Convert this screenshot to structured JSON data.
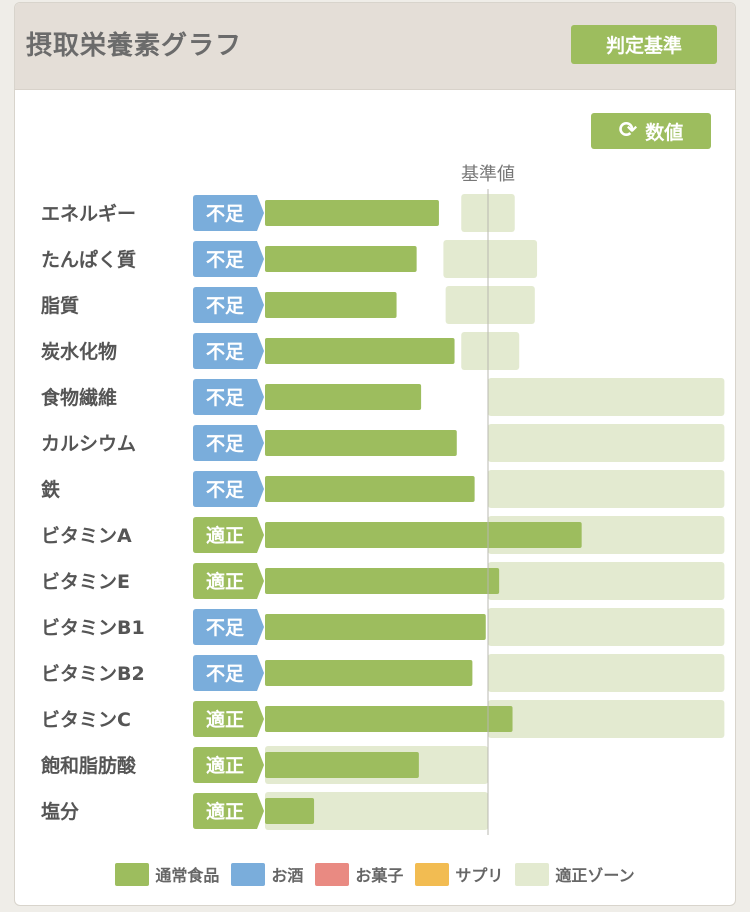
{
  "header": {
    "title": "摂取栄養素グラフ",
    "criteria_button": "判定基準"
  },
  "toolbar": {
    "value_button": "数値",
    "value_icon": "refresh-icon"
  },
  "colors": {
    "normal_food": "#9dbd5e",
    "alcohol": "#7aaddb",
    "snack": "#e98a82",
    "supplement": "#f2bc52",
    "zone": "#e3ead0",
    "status_deficient": "#7aaddb",
    "status_adequate": "#9dbd5e"
  },
  "chart_data": {
    "type": "bar",
    "orientation": "horizontal",
    "reference_label": "基準値",
    "reference_value": 100,
    "xlim": [
      0,
      206
    ],
    "categories": [
      "エネルギー",
      "たんぱく質",
      "脂質",
      "炭水化物",
      "食物繊維",
      "カルシウム",
      "鉄",
      "ビタミンA",
      "ビタミンE",
      "ビタミンB1",
      "ビタミンB2",
      "ビタミンC",
      "飽和脂肪酸",
      "塩分"
    ],
    "status": [
      "不足",
      "不足",
      "不足",
      "不足",
      "不足",
      "不足",
      "不足",
      "適正",
      "適正",
      "不足",
      "不足",
      "適正",
      "適正",
      "適正"
    ],
    "series": [
      {
        "name": "通常食品",
        "values": [
          78,
          68,
          59,
          85,
          70,
          86,
          94,
          142,
          105,
          99,
          93,
          111,
          69,
          22
        ]
      }
    ],
    "adequate_range": [
      [
        88,
        112
      ],
      [
        80,
        122
      ],
      [
        81,
        121
      ],
      [
        88,
        114
      ],
      [
        100,
        206
      ],
      [
        100,
        206
      ],
      [
        100,
        206
      ],
      [
        100,
        206
      ],
      [
        100,
        206
      ],
      [
        100,
        206
      ],
      [
        100,
        206
      ],
      [
        100,
        206
      ],
      [
        0,
        100
      ],
      [
        0,
        100
      ]
    ],
    "legend": [
      "通常食品",
      "お酒",
      "お菓子",
      "サプリ",
      "適正ゾーン"
    ],
    "legend_placement": "bottom"
  }
}
